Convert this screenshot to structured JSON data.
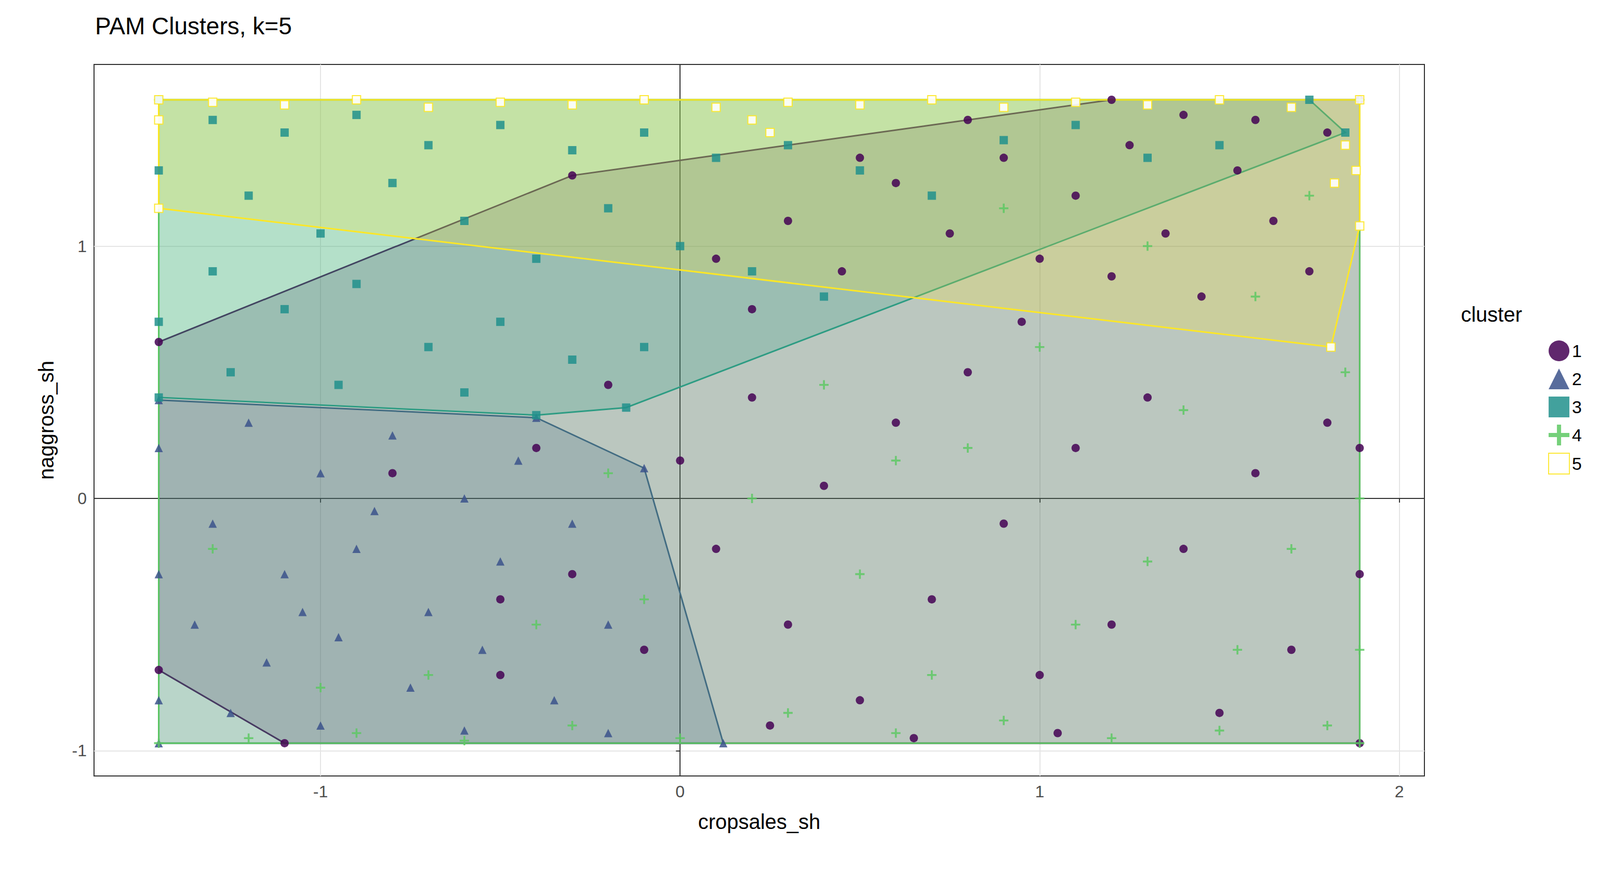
{
  "chart_data": {
    "type": "scatter",
    "title": "PAM Clusters, k=5",
    "x_label": "cropsales_sh",
    "y_label": "naggross_sh",
    "xlim": [
      -1.63,
      2.07
    ],
    "ylim": [
      -1.1,
      1.72
    ],
    "xticks": [
      -1,
      0,
      1,
      2
    ],
    "yticks": [
      -1,
      0,
      1
    ],
    "grid": true,
    "legend": "right",
    "legend_title": "cluster",
    "series": [
      {
        "name": "1",
        "color": "#440154",
        "marker": "circle",
        "x": [
          -1.45,
          -1.45,
          -1.1,
          -0.3,
          0.8,
          1.2,
          1.89,
          1.89,
          0.1,
          0.3,
          0.45,
          0.6,
          0.75,
          0.9,
          1.0,
          1.1,
          1.25,
          1.35,
          1.45,
          1.55,
          1.65,
          1.75,
          1.8,
          1.6,
          1.4,
          0.95,
          1.2,
          0.5,
          0.2,
          -0.4,
          -0.3,
          -0.1,
          0.0,
          0.1,
          0.2,
          0.3,
          0.4,
          0.5,
          0.6,
          0.7,
          0.8,
          0.9,
          1.0,
          1.1,
          1.2,
          1.3,
          1.4,
          1.5,
          1.6,
          1.7,
          1.8,
          1.89,
          1.89,
          0.65,
          1.05,
          0.25,
          -0.5,
          -0.2,
          -0.8,
          -0.5
        ],
        "values": [
          0.62,
          -0.68,
          -0.97,
          1.28,
          1.5,
          1.58,
          1.58,
          -0.97,
          0.95,
          1.1,
          0.9,
          1.25,
          1.05,
          1.35,
          0.95,
          1.2,
          1.4,
          1.05,
          0.8,
          1.3,
          1.1,
          0.9,
          1.45,
          1.5,
          1.52,
          0.7,
          0.88,
          1.35,
          0.75,
          0.2,
          -0.3,
          -0.6,
          0.15,
          -0.2,
          0.4,
          -0.5,
          0.05,
          -0.8,
          0.3,
          -0.4,
          0.5,
          -0.1,
          -0.7,
          0.2,
          -0.5,
          0.4,
          -0.2,
          -0.85,
          0.1,
          -0.6,
          0.3,
          -0.3,
          0.2,
          -0.95,
          -0.93,
          -0.9,
          -0.4,
          0.45,
          0.1,
          -0.7
        ]
      },
      {
        "name": "2",
        "color": "#3b528b",
        "marker": "triangle",
        "x": [
          -1.45,
          -0.4,
          -0.1,
          0.12,
          -1.45,
          -1.2,
          -1.0,
          -0.8,
          -0.6,
          -1.3,
          -1.1,
          -0.9,
          -0.7,
          -0.5,
          -0.3,
          -1.35,
          -1.15,
          -0.95,
          -0.75,
          -0.55,
          -0.35,
          -0.2,
          -1.25,
          -1.0,
          -0.6,
          -0.2,
          -1.45,
          -1.45,
          -1.45,
          -0.45,
          -0.85,
          -1.05
        ],
        "values": [
          0.39,
          0.32,
          0.12,
          -0.97,
          -0.97,
          0.3,
          0.1,
          0.25,
          0.0,
          -0.1,
          -0.3,
          -0.2,
          -0.45,
          -0.25,
          -0.1,
          -0.5,
          -0.65,
          -0.55,
          -0.75,
          -0.6,
          -0.8,
          -0.5,
          -0.85,
          -0.9,
          -0.92,
          -0.93,
          0.2,
          -0.3,
          -0.8,
          0.15,
          -0.05,
          -0.45
        ]
      },
      {
        "name": "3",
        "color": "#21908c",
        "marker": "square",
        "x": [
          -1.45,
          1.75,
          1.85,
          -0.15,
          -0.4,
          -1.45,
          -1.3,
          -1.1,
          -0.9,
          -0.7,
          -0.5,
          -0.3,
          -0.1,
          0.1,
          0.3,
          0.5,
          0.7,
          0.9,
          1.1,
          1.3,
          -1.2,
          -1.0,
          -0.8,
          -0.6,
          -0.4,
          -0.2,
          0.0,
          0.2,
          -1.3,
          -1.1,
          -0.9,
          -0.7,
          -0.5,
          -0.3,
          -0.1,
          -1.25,
          -0.95,
          -0.6,
          0.4,
          1.5,
          -1.45,
          -1.45
        ],
        "values": [
          1.58,
          1.58,
          1.45,
          0.36,
          0.33,
          0.4,
          1.5,
          1.45,
          1.52,
          1.4,
          1.48,
          1.38,
          1.45,
          1.35,
          1.4,
          1.3,
          1.2,
          1.42,
          1.48,
          1.35,
          1.2,
          1.05,
          1.25,
          1.1,
          0.95,
          1.15,
          1.0,
          0.9,
          0.9,
          0.75,
          0.85,
          0.6,
          0.7,
          0.55,
          0.6,
          0.5,
          0.45,
          0.42,
          0.8,
          1.4,
          1.3,
          0.7
        ]
      },
      {
        "name": "4",
        "color": "#5dc863",
        "marker": "plus",
        "x": [
          -1.45,
          1.89,
          1.89,
          -1.45,
          -1.2,
          -0.9,
          -0.6,
          -0.3,
          0.0,
          0.3,
          0.6,
          0.9,
          1.2,
          1.5,
          1.8,
          -0.1,
          0.2,
          0.5,
          0.8,
          1.1,
          1.4,
          1.7,
          1.85,
          1.6,
          1.3,
          1.0,
          0.7,
          0.4,
          1.55,
          1.75,
          1.3,
          0.9,
          -0.7,
          -0.4,
          -1.0,
          -1.3,
          1.89,
          1.89,
          -0.2,
          0.6
        ],
        "values": [
          1.58,
          1.58,
          -0.97,
          -0.97,
          -0.95,
          -0.93,
          -0.96,
          -0.9,
          -0.95,
          -0.85,
          -0.93,
          -0.88,
          -0.95,
          -0.92,
          -0.9,
          -0.4,
          0.0,
          -0.3,
          0.2,
          -0.5,
          0.35,
          -0.2,
          0.5,
          0.8,
          1.0,
          0.6,
          -0.7,
          0.45,
          -0.6,
          1.2,
          -0.25,
          1.15,
          -0.7,
          -0.5,
          -0.75,
          -0.2,
          0.0,
          -0.6,
          0.1,
          0.15
        ]
      },
      {
        "name": "5",
        "color": "#fde725",
        "marker": "square-x",
        "x": [
          -1.45,
          1.89,
          1.89,
          1.81,
          -1.45,
          -1.3,
          -1.1,
          -0.9,
          -0.7,
          -0.5,
          -0.3,
          -0.1,
          0.1,
          0.3,
          0.5,
          0.7,
          0.9,
          1.1,
          1.3,
          1.5,
          1.7,
          1.85,
          1.88,
          1.82,
          0.2,
          0.25,
          -1.45
        ],
        "values": [
          1.58,
          1.58,
          1.08,
          0.6,
          1.15,
          1.57,
          1.56,
          1.58,
          1.55,
          1.57,
          1.56,
          1.58,
          1.55,
          1.57,
          1.56,
          1.58,
          1.55,
          1.57,
          1.56,
          1.58,
          1.55,
          1.4,
          1.3,
          1.25,
          1.5,
          1.45,
          1.5
        ]
      }
    ]
  }
}
